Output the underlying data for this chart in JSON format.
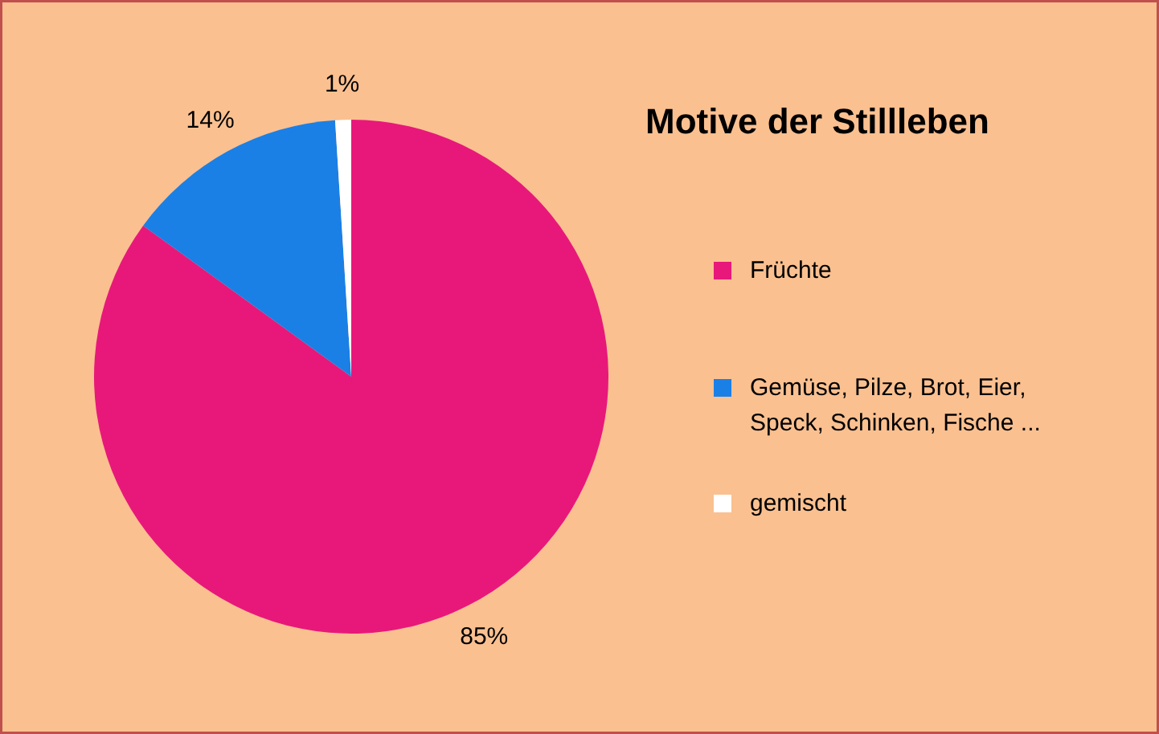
{
  "chart_data": {
    "type": "pie",
    "title": "Motive der Stillleben",
    "categories": [
      "Früchte",
      "Gemüse, Pilze, Brot, Eier, Speck, Schinken, Fische ...",
      "gemischt"
    ],
    "values": [
      85,
      14,
      1
    ],
    "colors": [
      "#e8187a",
      "#1a80e6",
      "#ffffff"
    ],
    "value_labels": [
      "85%",
      "14%",
      "1%"
    ],
    "legend": "right"
  }
}
